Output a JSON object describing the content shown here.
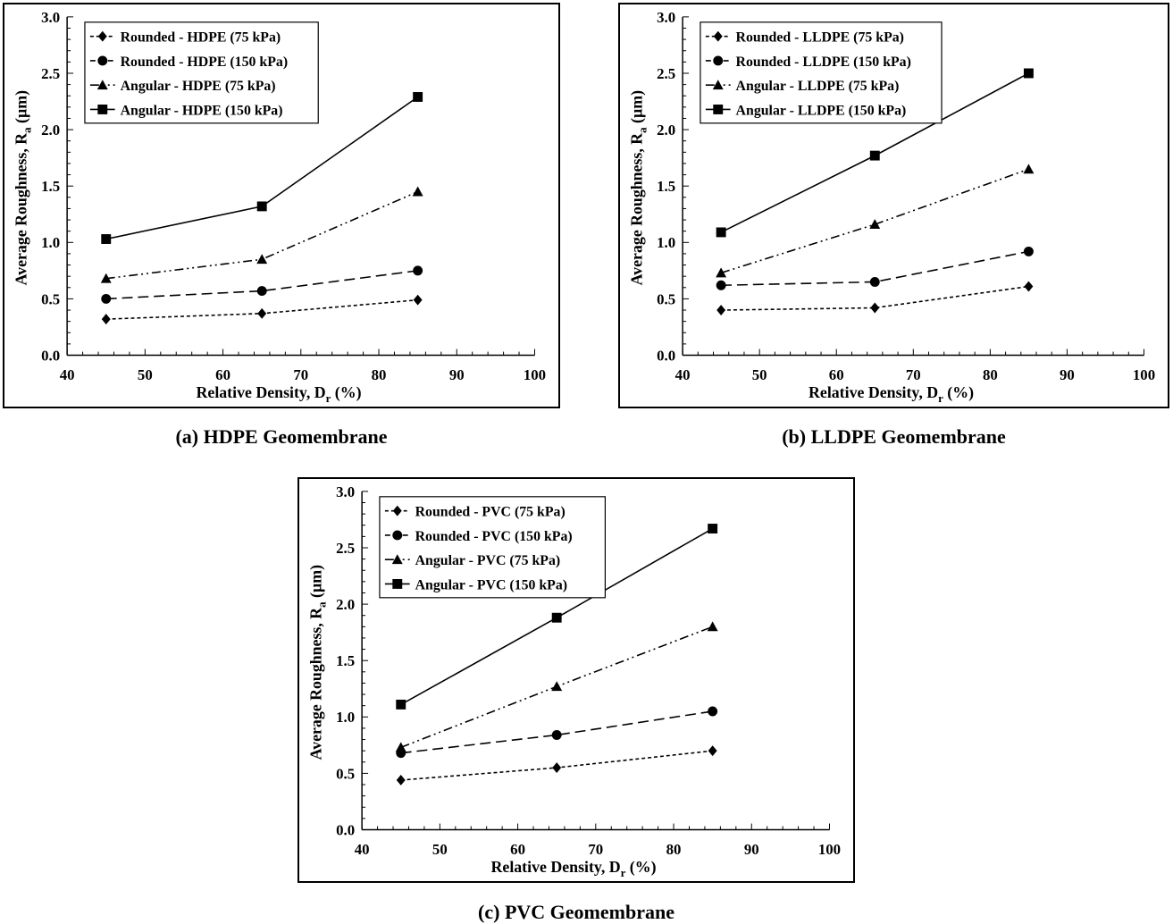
{
  "chart_data": [
    {
      "type": "line",
      "caption": "(a) HDPE Geomembrane",
      "xlabel_main": "Relative Density, D",
      "xlabel_sub": "r",
      "xlabel_tail": " (%)",
      "ylabel_main": "Average Roughness, R",
      "ylabel_sub": "a",
      "ylabel_tail": " (µm)",
      "xlim": [
        40,
        100
      ],
      "ylim": [
        0.0,
        3.0
      ],
      "xticks": [
        "40",
        "50",
        "60",
        "70",
        "80",
        "90",
        "100"
      ],
      "yticks": [
        "0.0",
        "0.5",
        "1.0",
        "1.5",
        "2.0",
        "2.5",
        "3.0"
      ],
      "grid": false,
      "legend_position": "top-left",
      "x": [
        45,
        65,
        85
      ],
      "series": [
        {
          "name": "Rounded - HDPE (75 kPa)",
          "marker": "diamond",
          "dash": "short",
          "values": [
            0.32,
            0.37,
            0.49
          ]
        },
        {
          "name": "Rounded - HDPE (150 kPa)",
          "marker": "circle",
          "dash": "long",
          "values": [
            0.5,
            0.57,
            0.75
          ]
        },
        {
          "name": "Angular - HDPE (75 kPa)",
          "marker": "triangle",
          "dash": "dashdotdot",
          "values": [
            0.68,
            0.85,
            1.45
          ]
        },
        {
          "name": "Angular - HDPE (150 kPa)",
          "marker": "square",
          "dash": "solid",
          "values": [
            1.03,
            1.32,
            2.29
          ]
        }
      ]
    },
    {
      "type": "line",
      "caption": "(b) LLDPE Geomembrane",
      "xlabel_main": "Relative Density, D",
      "xlabel_sub": "r",
      "xlabel_tail": " (%)",
      "ylabel_main": "Average Roughness, R",
      "ylabel_sub": "a",
      "ylabel_tail": " (µm)",
      "xlim": [
        40,
        100
      ],
      "ylim": [
        0.0,
        3.0
      ],
      "xticks": [
        "40",
        "50",
        "60",
        "70",
        "80",
        "90",
        "100"
      ],
      "yticks": [
        "0.0",
        "0.5",
        "1.0",
        "1.5",
        "2.0",
        "2.5",
        "3.0"
      ],
      "grid": false,
      "legend_position": "top-left",
      "x": [
        45,
        65,
        85
      ],
      "series": [
        {
          "name": "Rounded - LLDPE (75 kPa)",
          "marker": "diamond",
          "dash": "short",
          "values": [
            0.4,
            0.42,
            0.61
          ]
        },
        {
          "name": "Rounded - LLDPE (150 kPa)",
          "marker": "circle",
          "dash": "long",
          "values": [
            0.62,
            0.65,
            0.92
          ]
        },
        {
          "name": "Angular - LLDPE (75 kPa)",
          "marker": "triangle",
          "dash": "dashdotdot",
          "values": [
            0.73,
            1.16,
            1.65
          ]
        },
        {
          "name": "Angular - LLDPE (150 kPa)",
          "marker": "square",
          "dash": "solid",
          "values": [
            1.09,
            1.77,
            2.5
          ]
        }
      ]
    },
    {
      "type": "line",
      "caption": "(c) PVC Geomembrane",
      "xlabel_main": "Relative Density, D",
      "xlabel_sub": "r",
      "xlabel_tail": " (%)",
      "ylabel_main": "Average Roughness, R",
      "ylabel_sub": "a",
      "ylabel_tail": " (µm)",
      "xlim": [
        40,
        100
      ],
      "ylim": [
        0.0,
        3.0
      ],
      "xticks": [
        "40",
        "50",
        "60",
        "70",
        "80",
        "90",
        "100"
      ],
      "yticks": [
        "0.0",
        "0.5",
        "1.0",
        "1.5",
        "2.0",
        "2.5",
        "3.0"
      ],
      "grid": false,
      "legend_position": "top-left",
      "x": [
        45,
        65,
        85
      ],
      "series": [
        {
          "name": "Rounded - PVC (75 kPa)",
          "marker": "diamond",
          "dash": "short",
          "values": [
            0.44,
            0.55,
            0.7
          ]
        },
        {
          "name": "Rounded - PVC (150 kPa)",
          "marker": "circle",
          "dash": "long",
          "values": [
            0.68,
            0.84,
            1.05
          ]
        },
        {
          "name": "Angular - PVC (75 kPa)",
          "marker": "triangle",
          "dash": "dashdotdot",
          "values": [
            0.73,
            1.27,
            1.8
          ]
        },
        {
          "name": "Angular - PVC (150 kPa)",
          "marker": "square",
          "dash": "solid",
          "values": [
            1.11,
            1.88,
            2.67
          ]
        }
      ]
    }
  ]
}
